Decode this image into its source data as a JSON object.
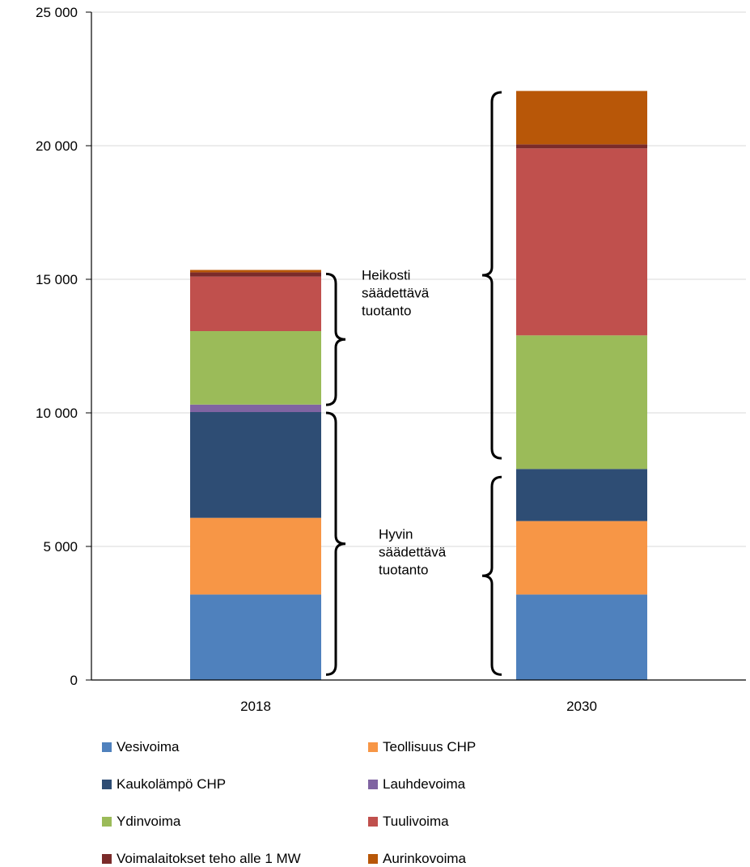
{
  "chart_data": {
    "type": "bar",
    "stacked": true,
    "categories": [
      "2018",
      "2030"
    ],
    "ylim": [
      0,
      25000
    ],
    "yticks": [
      0,
      5000,
      10000,
      15000,
      20000,
      25000
    ],
    "ytick_labels": [
      "0",
      "5 000",
      "10 000",
      "15 000",
      "20 000",
      "25 000"
    ],
    "grid": true,
    "legend_position": "bottom",
    "series": [
      {
        "name": "Vesivoima",
        "color": "#4f81bd",
        "values": [
          3200,
          3200
        ]
      },
      {
        "name": "Teollisuus CHP",
        "color": "#f79646",
        "values": [
          2870,
          2750
        ]
      },
      {
        "name": "Kaukolämpö CHP",
        "color": "#2e4d74",
        "values": [
          3960,
          1950
        ]
      },
      {
        "name": "Lauhdevoima",
        "color": "#8064a2",
        "values": [
          280,
          0
        ]
      },
      {
        "name": "Ydinvoima",
        "color": "#9bbb59",
        "values": [
          2750,
          5000
        ]
      },
      {
        "name": "Tuulivoima",
        "color": "#c0504d",
        "values": [
          2040,
          7000
        ]
      },
      {
        "name": "Voimalaitokset teho alle 1 MW",
        "color": "#7b2b2a",
        "values": [
          160,
          150
        ]
      },
      {
        "name": "Aurinkovoima",
        "color": "#b85708",
        "values": [
          90,
          2000
        ]
      }
    ],
    "annotations": [
      {
        "lines": [
          "Heikosti",
          "säädettävä",
          "tuotanto"
        ],
        "brace_range": [
          10300,
          15200
        ],
        "category": "2018"
      },
      {
        "lines": [
          "Hyvin",
          "säädettävä",
          "tuotanto"
        ],
        "brace_range": [
          200,
          10000
        ],
        "category": "2018"
      },
      {
        "brace_range": [
          8300,
          22000
        ],
        "category": "2030"
      },
      {
        "brace_range": [
          200,
          7600
        ],
        "category": "2030"
      }
    ]
  }
}
